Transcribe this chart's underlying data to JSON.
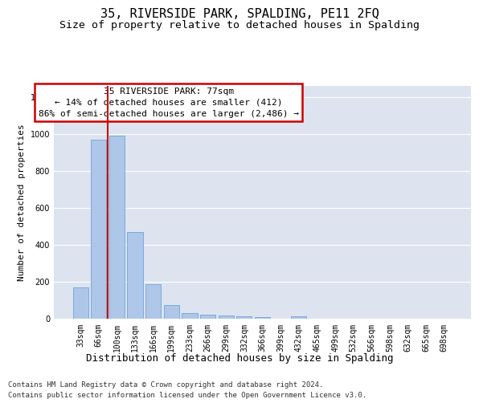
{
  "title": "35, RIVERSIDE PARK, SPALDING, PE11 2FQ",
  "subtitle": "Size of property relative to detached houses in Spalding",
  "xlabel": "Distribution of detached houses by size in Spalding",
  "ylabel": "Number of detached properties",
  "categories": [
    "33sqm",
    "66sqm",
    "100sqm",
    "133sqm",
    "166sqm",
    "199sqm",
    "233sqm",
    "266sqm",
    "299sqm",
    "332sqm",
    "366sqm",
    "399sqm",
    "432sqm",
    "465sqm",
    "499sqm",
    "532sqm",
    "566sqm",
    "598sqm",
    "632sqm",
    "665sqm",
    "698sqm"
  ],
  "values": [
    170,
    970,
    990,
    470,
    185,
    75,
    30,
    22,
    18,
    12,
    10,
    0,
    12,
    0,
    0,
    0,
    0,
    0,
    0,
    0,
    0
  ],
  "bar_color": "#aec6e8",
  "bar_edge_color": "#5b9bd5",
  "vline_x_pos": 1.5,
  "vline_color": "#cc0000",
  "annotation_text": "35 RIVERSIDE PARK: 77sqm\n← 14% of detached houses are smaller (412)\n86% of semi-detached houses are larger (2,486) →",
  "annotation_box_facecolor": "#ffffff",
  "annotation_box_edgecolor": "#cc0000",
  "ylim": [
    0,
    1260
  ],
  "yticks": [
    0,
    200,
    400,
    600,
    800,
    1000,
    1200
  ],
  "background_color": "#dde4f0",
  "grid_color": "#ffffff",
  "footer_line1": "Contains HM Land Registry data © Crown copyright and database right 2024.",
  "footer_line2": "Contains public sector information licensed under the Open Government Licence v3.0.",
  "title_fontsize": 11,
  "subtitle_fontsize": 9.5,
  "ylabel_fontsize": 8,
  "xlabel_fontsize": 9,
  "tick_fontsize": 7,
  "annotation_fontsize": 8,
  "footer_fontsize": 6.5
}
